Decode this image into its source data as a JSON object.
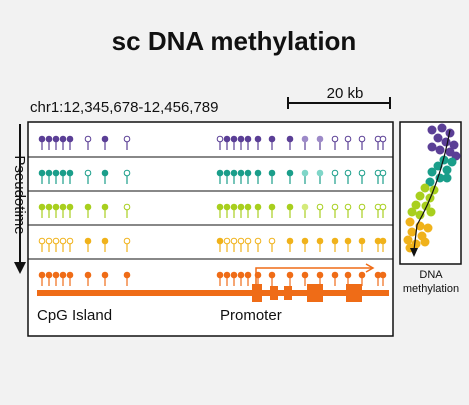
{
  "title": "sc DNA methylation",
  "coordinates": "chr1:12,345,678-12,456,789",
  "scale_label": "20 kb",
  "pseudotime_label": "Pseudotime",
  "cpg_label": "CpG Island",
  "promoter_label": "Promoter",
  "umap_label_line1": "DNA",
  "umap_label_line2": "methylation",
  "colors": {
    "row1": "#5b3f96",
    "row2": "#1a9e8a",
    "row3": "#a8cf1e",
    "row4": "#f0b21a",
    "row5": "#ef6c17",
    "row2_light": "#7fd6c8",
    "row1_light": "#9d8ac8",
    "row3_light": "#d4ea7a"
  },
  "tracks": [
    {
      "color": "row1",
      "states": [
        1,
        1,
        1,
        1,
        1,
        0,
        1,
        0,
        0,
        1,
        1,
        1,
        1,
        1,
        1,
        1,
        2,
        2,
        0,
        0,
        0,
        0,
        0
      ]
    },
    {
      "color": "row2",
      "states": [
        1,
        1,
        1,
        1,
        1,
        0,
        1,
        0,
        1,
        1,
        1,
        1,
        1,
        1,
        1,
        1,
        2,
        2,
        0,
        0,
        0,
        0,
        0
      ]
    },
    {
      "color": "row3",
      "states": [
        1,
        1,
        1,
        1,
        1,
        1,
        1,
        0,
        1,
        1,
        1,
        1,
        1,
        1,
        1,
        1,
        2,
        0,
        0,
        0,
        0,
        0,
        0
      ]
    },
    {
      "color": "row4",
      "states": [
        0,
        0,
        0,
        0,
        0,
        1,
        1,
        0,
        1,
        0,
        0,
        0,
        0,
        0,
        0,
        1,
        1,
        1,
        1,
        1,
        1,
        1,
        1
      ]
    },
    {
      "color": "row5",
      "states": [
        1,
        1,
        1,
        1,
        1,
        1,
        1,
        1,
        1,
        1,
        1,
        1,
        1,
        1,
        1,
        1,
        1,
        1,
        1,
        1,
        1,
        1,
        1
      ]
    }
  ]
}
